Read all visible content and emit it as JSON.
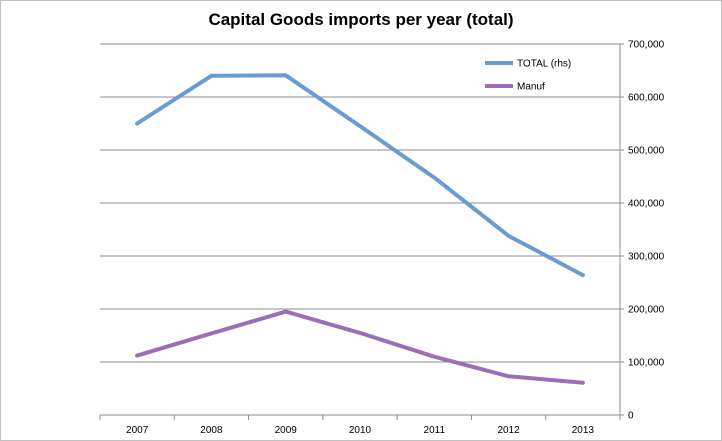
{
  "chart_data": {
    "type": "line",
    "title": "Capital Goods imports per year (total)",
    "categories": [
      "2007",
      "2008",
      "2009",
      "2010",
      "2011",
      "2012",
      "2013"
    ],
    "series": [
      {
        "name": "TOTAL  (rhs)",
        "color": "#6a9bd1",
        "values": [
          550000,
          640000,
          641000,
          545000,
          448000,
          338000,
          264000
        ]
      },
      {
        "name": "Manuf",
        "color": "#9a6fb8",
        "values": [
          112000,
          154000,
          195000,
          155000,
          110000,
          73000,
          61000
        ]
      }
    ],
    "y_axis": {
      "position": "right",
      "ylim": [
        0,
        700000
      ],
      "tick_labels": [
        "0",
        "100,000",
        "200,000",
        "300,000",
        "400,000",
        "500,000",
        "600,000",
        "700,000"
      ]
    },
    "grid": true,
    "legend": "top-right"
  }
}
